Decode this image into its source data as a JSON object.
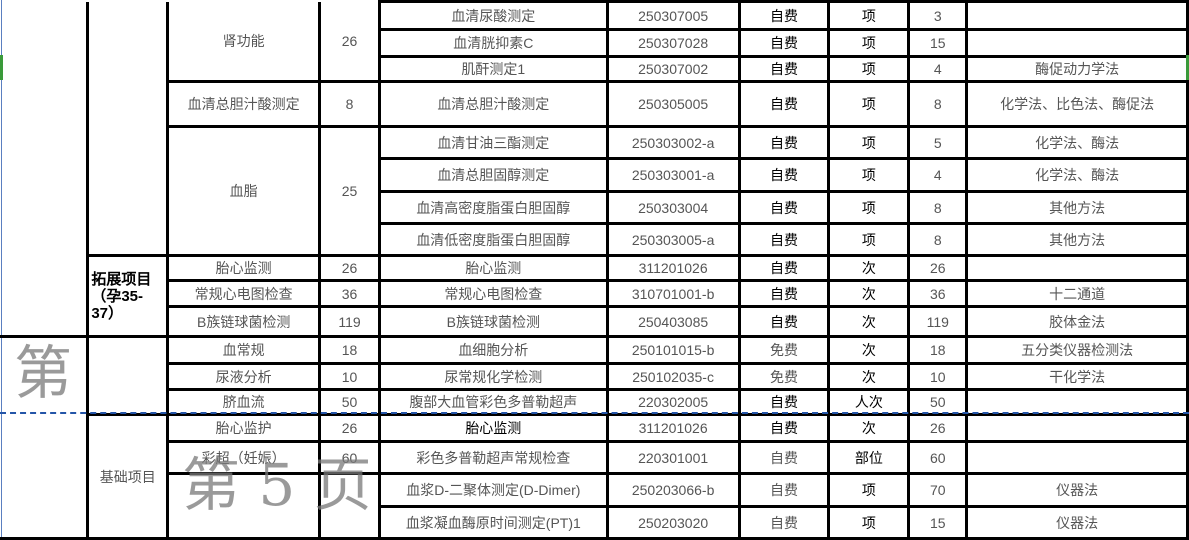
{
  "watermark": "第 5 页",
  "watermark_partial": "第",
  "section_groups": [
    "",
    ""
  ],
  "category_groups": [
    "",
    "拓展项目（孕35-37）",
    "",
    "基础项目"
  ],
  "package_items": [
    {
      "name": "肾功能",
      "price": "26"
    },
    {
      "name": "血清总胆汁酸测定",
      "price": "8"
    },
    {
      "name": "血脂",
      "price": "25"
    },
    {
      "name": "胎心监测",
      "price": "26"
    },
    {
      "name": "常规心电图检查",
      "price": "36"
    },
    {
      "name": "B族链球菌检测",
      "price": "119"
    },
    {
      "name": "血常规",
      "price": "18"
    },
    {
      "name": "尿液分析",
      "price": "10"
    },
    {
      "name": "脐血流",
      "price": "50"
    },
    {
      "name": "胎心监护",
      "price": "26"
    },
    {
      "name": "彩超（妊娠）",
      "price": "60"
    },
    {
      "name": "",
      "price": ""
    }
  ],
  "rows": [
    {
      "item": "血清尿酸测定",
      "code": "250307005",
      "pay": "自费",
      "unit": "项",
      "price": "3",
      "method": ""
    },
    {
      "item": "血清胱抑素C",
      "code": "250307028",
      "pay": "自费",
      "unit": "项",
      "price": "15",
      "method": ""
    },
    {
      "item": "肌酐测定1",
      "code": "250307002",
      "pay": "自费",
      "unit": "项",
      "price": "4",
      "method": "酶促动力学法"
    },
    {
      "item": "血清总胆汁酸测定",
      "code": "250305005",
      "pay": "自费",
      "unit": "项",
      "price": "8",
      "method": "化学法、比色法、酶促法"
    },
    {
      "item": "血清甘油三酯测定",
      "code": "250303002-a",
      "pay": "自费",
      "unit": "项",
      "price": "5",
      "method": "化学法、酶法"
    },
    {
      "item": "血清总胆固醇测定",
      "code": "250303001-a",
      "pay": "自费",
      "unit": "项",
      "price": "4",
      "method": "化学法、酶法"
    },
    {
      "item": "血清高密度脂蛋白胆固醇",
      "code": "250303004",
      "pay": "自费",
      "unit": "项",
      "price": "8",
      "method": "其他方法"
    },
    {
      "item": "血清低密度脂蛋白胆固醇",
      "code": "250303005-a",
      "pay": "自费",
      "unit": "项",
      "price": "8",
      "method": "其他方法"
    },
    {
      "item": "胎心监测",
      "code": "311201026",
      "pay": "自费",
      "unit": "次",
      "price": "26",
      "method": ""
    },
    {
      "item": "常规心电图检查",
      "code": "310701001-b",
      "pay": "自费",
      "unit": "次",
      "price": "36",
      "method": "十二通道"
    },
    {
      "item": "B族链球菌检测",
      "code": "250403085",
      "pay": "自费",
      "unit": "次",
      "price": "119",
      "method": "胶体金法"
    },
    {
      "item": "血细胞分析",
      "code": "250101015-b",
      "pay": "免费",
      "unit": "次",
      "price": "18",
      "method": "五分类仪器检测法"
    },
    {
      "item": "尿常规化学检测",
      "code": "250102035-c",
      "pay": "免费",
      "unit": "次",
      "price": "10",
      "method": "干化学法"
    },
    {
      "item": "腹部大血管彩色多普勒超声",
      "code": "220302005",
      "pay": "自费",
      "unit": "人次",
      "price": "50",
      "method": ""
    },
    {
      "item": "胎心监测",
      "code": "311201026",
      "pay": "自费",
      "unit": "次",
      "price": "26",
      "method": ""
    },
    {
      "item": "彩色多普勒超声常规检查",
      "code": "220301001",
      "pay": "自费",
      "unit": "部位",
      "price": "60",
      "method": ""
    },
    {
      "item": "血浆D-二聚体测定(D-Dimer)",
      "code": "250203066-b",
      "pay": "自费",
      "unit": "项",
      "price": "70",
      "method": "仪器法"
    },
    {
      "item": "血浆凝血酶原时间测定(PT)1",
      "code": "250203020",
      "pay": "自费",
      "unit": "项",
      "price": "15",
      "method": "仪器法"
    }
  ],
  "colors": {
    "grid": "#000000",
    "page_break": "#2455a8",
    "text": "#555555",
    "watermark": "#787878",
    "selection_marker": "#3a9a3a"
  }
}
